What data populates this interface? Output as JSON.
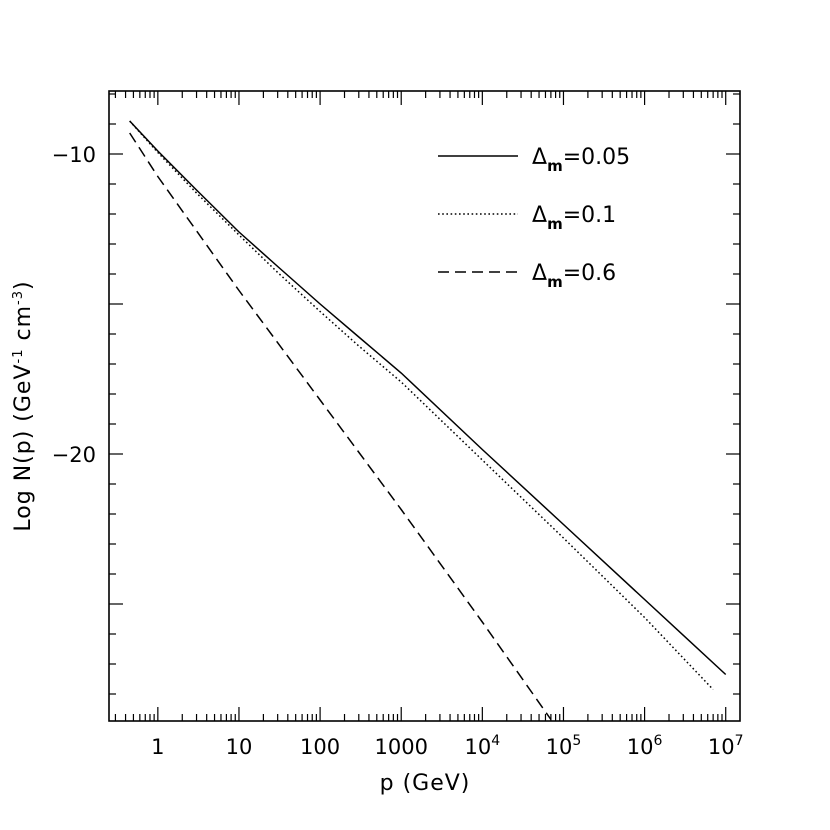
{
  "chart_data": {
    "type": "line",
    "title": "",
    "xlabel": "p (GeV)",
    "ylabel": {
      "main": "Log N(p) (GeV",
      "exp1": "-1",
      "mid": " cm",
      "exp2": "-3",
      "end": ")"
    },
    "x_scale": "log",
    "xlim": [
      0.25,
      15000000
    ],
    "ylim": [
      -28.9,
      -7.9
    ],
    "x_ticks": [
      {
        "value": 1,
        "base": "1",
        "exp": ""
      },
      {
        "value": 10,
        "base": "10",
        "exp": ""
      },
      {
        "value": 100,
        "base": "100",
        "exp": ""
      },
      {
        "value": 1000,
        "base": "1000",
        "exp": ""
      },
      {
        "value": 10000,
        "base": "10",
        "exp": "4"
      },
      {
        "value": 100000,
        "base": "10",
        "exp": "5"
      },
      {
        "value": 1000000,
        "base": "10",
        "exp": "6"
      },
      {
        "value": 10000000,
        "base": "10",
        "exp": "7"
      }
    ],
    "y_ticks": [
      {
        "value": -10,
        "label": "−10"
      },
      {
        "value": -20,
        "label": "−20"
      }
    ],
    "grid": false,
    "legend_position": "top-right",
    "series": [
      {
        "name": "Δm=0.05",
        "label_main": "Δ",
        "label_sub": "m",
        "label_rest": "=0.05",
        "style": "solid",
        "x": [
          0.45,
          1,
          3,
          10,
          30,
          100,
          300,
          1000,
          10000,
          100000,
          1000000,
          10000000
        ],
        "y": [
          -8.9,
          -9.9,
          -11.2,
          -12.6,
          -13.75,
          -15.0,
          -16.1,
          -17.3,
          -19.85,
          -22.35,
          -24.85,
          -27.35
        ]
      },
      {
        "name": "Δm=0.1",
        "label_main": "Δ",
        "label_sub": "m",
        "label_rest": "=0.1",
        "style": "dotted",
        "x": [
          0.45,
          1,
          3,
          10,
          30,
          100,
          300,
          1000,
          10000,
          100000,
          1000000,
          7000000
        ],
        "y": [
          -8.9,
          -9.95,
          -11.3,
          -12.7,
          -13.95,
          -15.25,
          -16.4,
          -17.6,
          -20.2,
          -22.8,
          -25.45,
          -27.85
        ]
      },
      {
        "name": "Δm=0.6",
        "label_main": "Δ",
        "label_sub": "m",
        "label_rest": "=0.6",
        "style": "dashed",
        "x": [
          0.45,
          1,
          10,
          100,
          1000,
          10000,
          70000
        ],
        "y": [
          -9.3,
          -10.75,
          -14.55,
          -18.2,
          -21.85,
          -25.6,
          -28.85
        ]
      }
    ]
  }
}
